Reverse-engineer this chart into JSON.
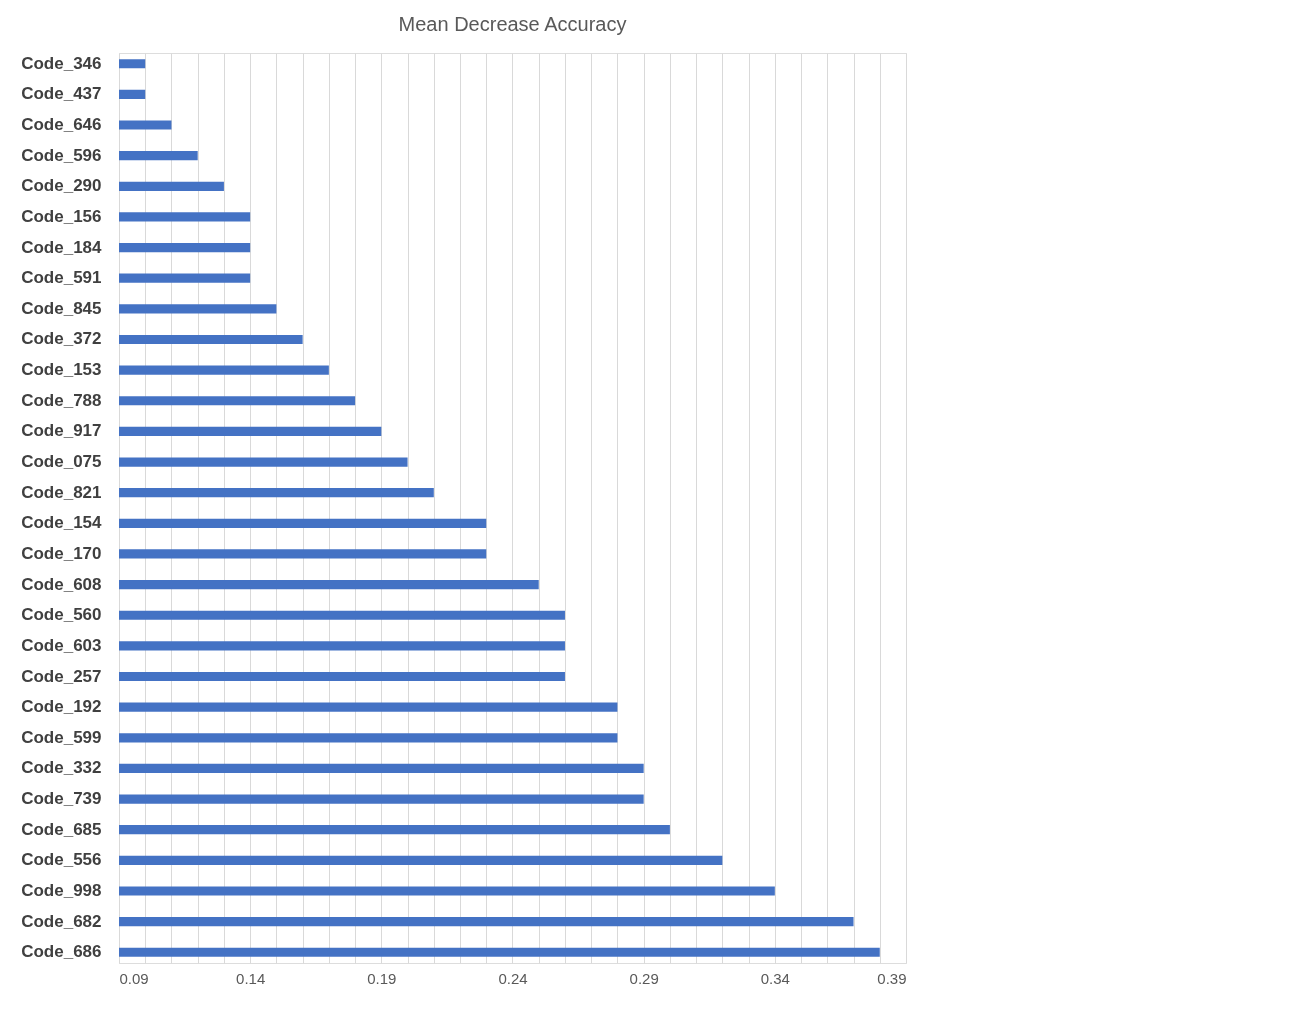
{
  "chart_data": {
    "type": "bar",
    "orientation": "horizontal",
    "title": "Mean Decrease Accuracy",
    "categories": [
      "Code_346",
      "Code_437",
      "Code_646",
      "Code_596",
      "Code_290",
      "Code_156",
      "Code_184",
      "Code_591",
      "Code_845",
      "Code_372",
      "Code_153",
      "Code_788",
      "Code_917",
      "Code_075",
      "Code_821",
      "Code_154",
      "Code_170",
      "Code_608",
      "Code_560",
      "Code_603",
      "Code_257",
      "Code_192",
      "Code_599",
      "Code_332",
      "Code_739",
      "Code_685",
      "Code_556",
      "Code_998",
      "Code_682",
      "Code_686"
    ],
    "values": [
      0.1,
      0.1,
      0.11,
      0.12,
      0.13,
      0.14,
      0.14,
      0.14,
      0.15,
      0.16,
      0.17,
      0.18,
      0.19,
      0.2,
      0.21,
      0.23,
      0.23,
      0.25,
      0.26,
      0.26,
      0.26,
      0.28,
      0.28,
      0.29,
      0.29,
      0.3,
      0.32,
      0.34,
      0.37,
      0.38
    ],
    "color": "#4472c4",
    "xlim": [
      0.09,
      0.39
    ],
    "xticks": [
      0.09,
      {
        "value": 0.1,
        "label": null
      },
      {
        "value": 0.11,
        "label": null
      },
      {
        "value": 0.12,
        "label": null
      },
      {
        "value": 0.13,
        "label": null
      },
      0.14,
      {
        "value": 0.15,
        "label": null
      },
      {
        "value": 0.16,
        "label": null
      },
      {
        "value": 0.17,
        "label": null
      },
      {
        "value": 0.18,
        "label": null
      },
      0.19,
      {
        "value": 0.2,
        "label": null
      },
      {
        "value": 0.21,
        "label": null
      },
      {
        "value": 0.22,
        "label": null
      },
      {
        "value": 0.23,
        "label": null
      },
      0.24,
      {
        "value": 0.25,
        "label": null
      },
      {
        "value": 0.26,
        "label": null
      },
      {
        "value": 0.27,
        "label": null
      },
      {
        "value": 0.28,
        "label": null
      },
      0.29,
      {
        "value": 0.3,
        "label": null
      },
      {
        "value": 0.31,
        "label": null
      },
      {
        "value": 0.32,
        "label": null
      },
      {
        "value": 0.33,
        "label": null
      },
      0.34,
      {
        "value": 0.35,
        "label": null
      },
      {
        "value": 0.36,
        "label": null
      },
      {
        "value": 0.37,
        "label": null
      },
      {
        "value": 0.38,
        "label": null
      },
      0.39
    ],
    "grid": "x"
  }
}
